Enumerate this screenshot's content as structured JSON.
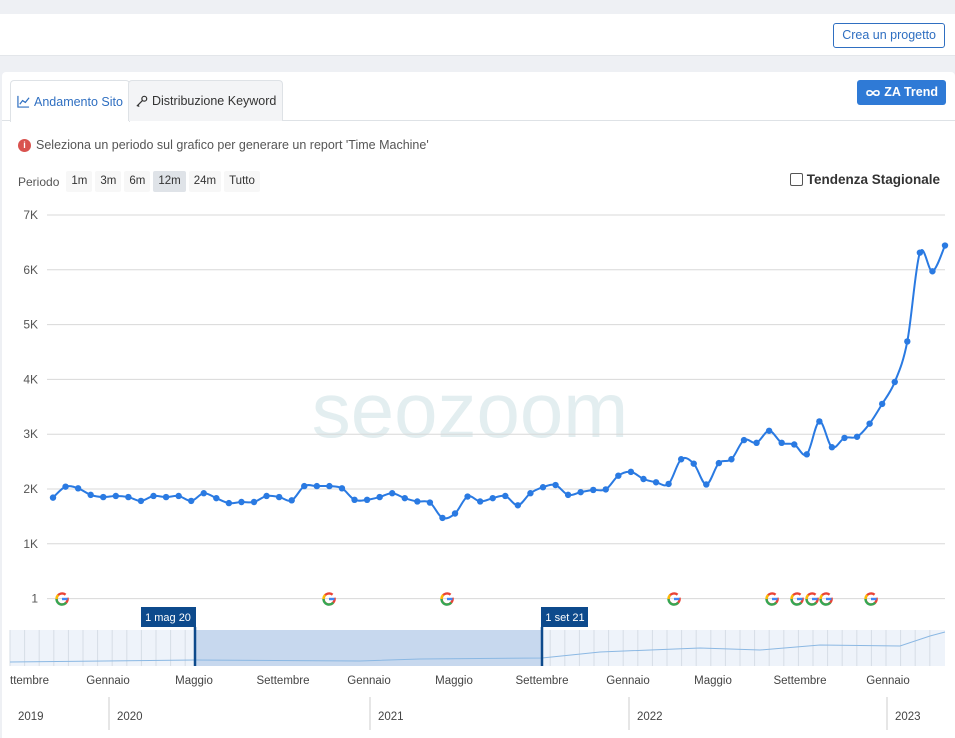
{
  "header": {
    "create_project_label": "Crea un progetto"
  },
  "tabs": [
    {
      "label": "Andamento Sito",
      "icon": "area-chart-icon",
      "active": true
    },
    {
      "label": "Distribuzione Keyword",
      "icon": "key-icon",
      "active": false
    }
  ],
  "za_trend_label": "ZA Trend",
  "info_text": "Seleziona un periodo sul grafico per generare un report 'Time Machine'",
  "period": {
    "label": "Periodo",
    "options": [
      "1m",
      "3m",
      "6m",
      "12m",
      "24m",
      "Tutto"
    ],
    "selected": "12m"
  },
  "seasonal_trend": {
    "label": "Tendenza Stagionale",
    "checked": false
  },
  "watermark": "seozoom",
  "colors": {
    "series": "#2a7ae2",
    "accent": "#2f6fc1",
    "selection": "#0d4a8c",
    "grid": "#d8d8d8"
  },
  "chart_data": {
    "type": "line",
    "y_ticks": [
      "7K",
      "6K",
      "5K",
      "4K",
      "3K",
      "2K",
      "1K",
      "1"
    ],
    "ylim": [
      0,
      7000
    ],
    "series": [
      {
        "values": [
          1850,
          2050,
          2020,
          1900,
          1860,
          1880,
          1860,
          1790,
          1880,
          1860,
          1880,
          1790,
          1930,
          1840,
          1750,
          1770,
          1770,
          1880,
          1860,
          1800,
          2060,
          2060,
          2060,
          2020,
          1810,
          1810,
          1860,
          1930,
          1840,
          1780,
          1760,
          1480,
          1560,
          1870,
          1780,
          1840,
          1880,
          1710,
          1930,
          2040,
          2080,
          1900,
          1950,
          1990,
          2000,
          2250,
          2320,
          2190,
          2130,
          2100,
          2550,
          2470,
          2090,
          2480,
          2550,
          2900,
          2850,
          3070,
          2850,
          2820,
          2640,
          3240,
          2770,
          2940,
          2960,
          3200,
          3560,
          3960,
          4700,
          6320,
          5980,
          6450
        ]
      }
    ],
    "google_updates_count": 9,
    "navigator": {
      "selection_start": "1 mag 20",
      "selection_end": "1 set 21",
      "month_labels": [
        "ttembre",
        "Gennaio",
        "Maggio",
        "Settembre",
        "Gennaio",
        "Maggio",
        "Settembre",
        "Gennaio",
        "Maggio",
        "Settembre",
        "Gennaio"
      ],
      "year_labels": [
        "2019",
        "2020",
        "2021",
        "2022",
        "2023"
      ]
    }
  }
}
